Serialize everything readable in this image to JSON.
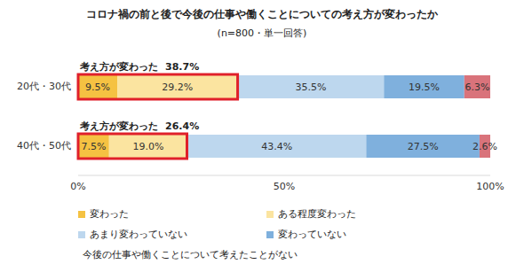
{
  "chart_data": {
    "type": "bar",
    "title": "コロナ禍の前と後で今後の仕事や働くことについての考え方が変わったか",
    "subtitle": "(n=800・単一回答)",
    "orientation": "horizontal",
    "stacked": true,
    "data_labels": true,
    "legend": "bottom",
    "grid": false,
    "categories": [
      "20代・30代",
      "40代・50代"
    ],
    "series": [
      {
        "name": "変わった",
        "color": "#f5c242",
        "values": [
          9.5,
          7.5
        ],
        "value_labels": [
          "9.5%",
          "7.5%"
        ]
      },
      {
        "name": "ある程度変わった",
        "color": "#fbe4a0",
        "values": [
          29.2,
          19.0
        ],
        "value_labels": [
          "29.2%",
          "19.0%"
        ]
      },
      {
        "name": "あまり変わっていない",
        "color": "#bdd7ee",
        "values": [
          35.5,
          43.4
        ],
        "value_labels": [
          "35.5%",
          "43.4%"
        ]
      },
      {
        "name": "変わっていない",
        "color": "#7fb0dd",
        "values": [
          19.5,
          27.5
        ],
        "value_labels": [
          "19.5%",
          "27.5%"
        ]
      },
      {
        "name": "今後の仕事や働くことについて考えたことがない",
        "color": "#d9737b",
        "values": [
          6.3,
          2.6
        ],
        "value_labels": [
          "6.3%",
          "2.6%"
        ]
      }
    ],
    "xlim": [
      0,
      100
    ],
    "xticks": [
      {
        "value": 0,
        "label": "0%"
      },
      {
        "value": 50,
        "label": "50%"
      },
      {
        "value": 100,
        "label": "100%"
      }
    ],
    "annotations": [
      {
        "category": "20代・30代",
        "text": "考え方が変わった",
        "value": 38.7,
        "label": "38.7%"
      },
      {
        "category": "40代・50代",
        "text": "考え方が変わった",
        "value": 26.4,
        "label": "26.4%"
      }
    ]
  }
}
